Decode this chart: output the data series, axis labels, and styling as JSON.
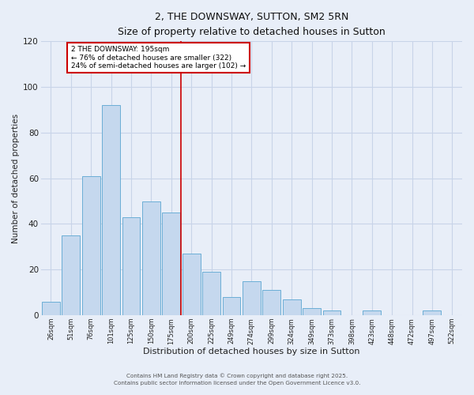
{
  "title": "2, THE DOWNSWAY, SUTTON, SM2 5RN",
  "subtitle": "Size of property relative to detached houses in Sutton",
  "xlabel": "Distribution of detached houses by size in Sutton",
  "ylabel": "Number of detached properties",
  "bar_labels": [
    "26sqm",
    "51sqm",
    "76sqm",
    "101sqm",
    "125sqm",
    "150sqm",
    "175sqm",
    "200sqm",
    "225sqm",
    "249sqm",
    "274sqm",
    "299sqm",
    "324sqm",
    "349sqm",
    "373sqm",
    "398sqm",
    "423sqm",
    "448sqm",
    "472sqm",
    "497sqm",
    "522sqm"
  ],
  "bar_values": [
    6,
    35,
    61,
    92,
    43,
    50,
    45,
    27,
    19,
    8,
    15,
    11,
    7,
    3,
    2,
    0,
    2,
    0,
    0,
    2,
    0
  ],
  "bar_color": "#c5d8ee",
  "bar_edge_color": "#6baed6",
  "ylim": [
    0,
    120
  ],
  "yticks": [
    0,
    20,
    40,
    60,
    80,
    100,
    120
  ],
  "vline_color": "#cc0000",
  "annotation_title": "2 THE DOWNSWAY: 195sqm",
  "annotation_line1": "← 76% of detached houses are smaller (322)",
  "annotation_line2": "24% of semi-detached houses are larger (102) →",
  "annotation_box_color": "#ffffff",
  "annotation_box_edge": "#cc0000",
  "bg_color": "#e8eef8",
  "grid_color": "#c8d4e8",
  "footer1": "Contains HM Land Registry data © Crown copyright and database right 2025.",
  "footer2": "Contains public sector information licensed under the Open Government Licence v3.0."
}
